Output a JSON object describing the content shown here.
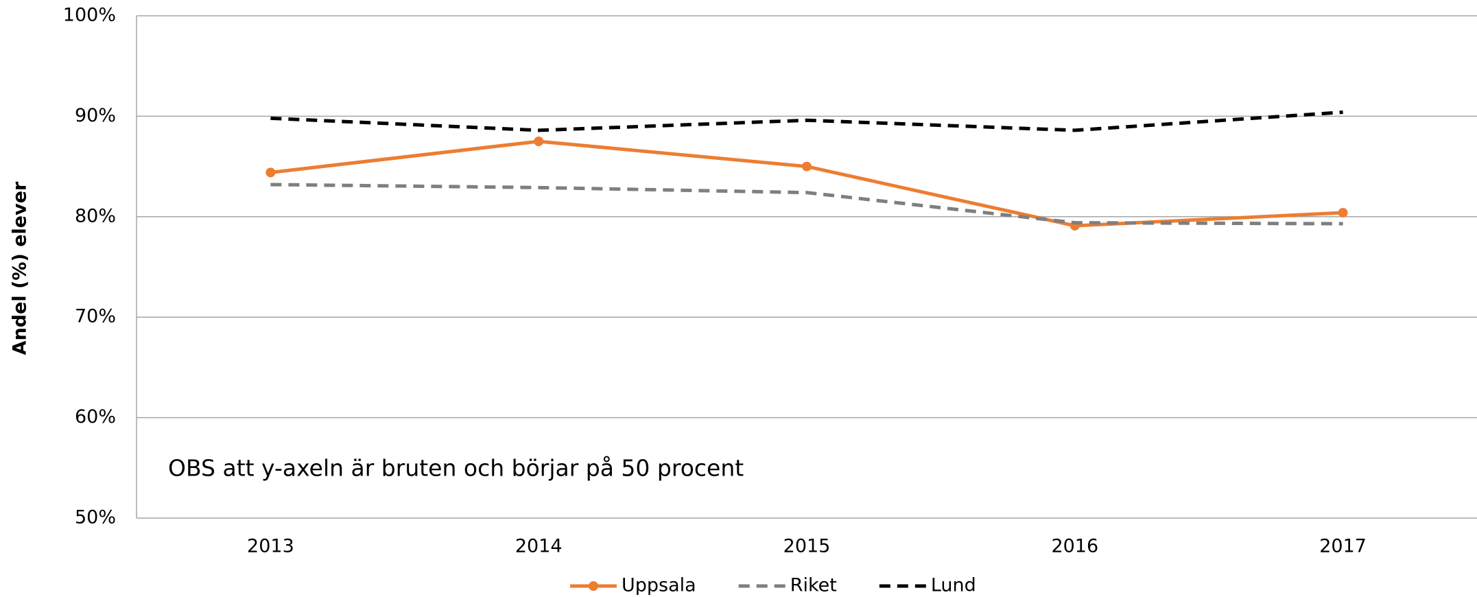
{
  "chart_data": {
    "type": "line",
    "y_label": "Andel (%) elever",
    "annotation": "OBS att y-axeln är bruten och börjar på 50 procent",
    "categories": [
      "2013",
      "2014",
      "2015",
      "2016",
      "2017"
    ],
    "series": [
      {
        "name": "Uppsala",
        "color": "#ed7d31",
        "dash": "solid",
        "markers": true,
        "values": [
          84.4,
          87.5,
          85.0,
          79.1,
          80.4
        ]
      },
      {
        "name": "Riket",
        "color": "#7f7f7f",
        "dash": "dashed",
        "markers": false,
        "values": [
          83.2,
          82.9,
          82.4,
          79.4,
          79.3
        ]
      },
      {
        "name": "Lund",
        "color": "#000000",
        "dash": "dashed",
        "markers": false,
        "values": [
          89.8,
          88.6,
          89.6,
          88.6,
          90.4
        ]
      }
    ],
    "ylim": [
      50,
      100
    ],
    "yticks": [
      {
        "value": 50,
        "label": "50%"
      },
      {
        "value": 60,
        "label": "60%"
      },
      {
        "value": 70,
        "label": "70%"
      },
      {
        "value": 80,
        "label": "80%"
      },
      {
        "value": 90,
        "label": "90%"
      },
      {
        "value": 100,
        "label": "100%"
      }
    ],
    "grid": true,
    "legend": "bottom"
  }
}
